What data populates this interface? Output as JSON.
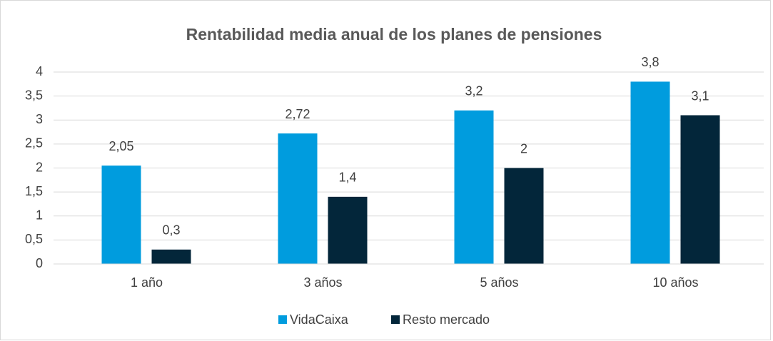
{
  "chart_data": {
    "type": "bar",
    "title": "Rentabilidad media anual de los planes de pensiones",
    "categories": [
      "1 año",
      "3 años",
      "5 años",
      "10 años"
    ],
    "series": [
      {
        "name": "VidaCaixa",
        "color": "#009cde",
        "values": [
          2.05,
          2.72,
          3.2,
          3.8
        ],
        "value_labels": [
          "2,05",
          "2,72",
          "3,2",
          "3,8"
        ]
      },
      {
        "name": "Resto mercado",
        "color": "#03263a",
        "values": [
          0.3,
          1.4,
          2,
          3.1
        ],
        "value_labels": [
          "0,3",
          "1,4",
          "2",
          "3,1"
        ]
      }
    ],
    "ylim": [
      0,
      4
    ],
    "yticks": [
      0,
      {
        "value": 0.5,
        "label": "0,5"
      },
      1,
      {
        "value": 1.5,
        "label": "1,5"
      },
      2,
      {
        "value": 2.5,
        "label": "2,5"
      },
      3,
      {
        "value": 3.5,
        "label": "3,5"
      },
      4
    ],
    "grid": true,
    "legend": "bottom"
  }
}
